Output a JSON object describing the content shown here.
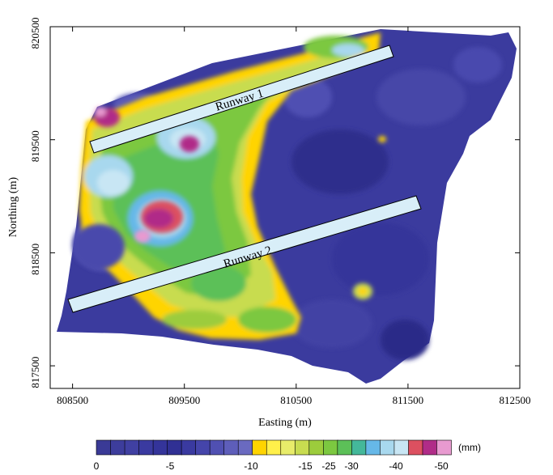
{
  "chart_data": {
    "type": "heatmap",
    "title": "",
    "xlabel": "Easting (m)",
    "ylabel": "Northing (m)",
    "xlim": [
      808300,
      812500
    ],
    "ylim": [
      817300,
      820500
    ],
    "x_ticks": [
      808500,
      809500,
      810500,
      811500,
      812500
    ],
    "y_ticks": [
      817500,
      818500,
      819500,
      820500
    ],
    "x_tick_labels": [
      "808500",
      "809500",
      "810500",
      "811500",
      "812500"
    ],
    "y_tick_labels": [
      "817500",
      "818500",
      "819500",
      "820500"
    ],
    "grid": false,
    "annotations": [
      "Runway 1",
      "Runway 2"
    ],
    "colorbar": {
      "unit": "(mm)",
      "tick_labels": [
        "0",
        "-5",
        "-10",
        "-15",
        "-25",
        "-30",
        "-40",
        "-50"
      ],
      "colors": [
        "#3a3a96",
        "#3d3d9c",
        "#4040a2",
        "#3a3aa0",
        "#34349a",
        "#303094",
        "#3a3aa0",
        "#4545aa",
        "#5050b2",
        "#5e5eba",
        "#6a6ac0",
        "#ffd400",
        "#fff04a",
        "#e8ec6a",
        "#c8dc50",
        "#9ccc3c",
        "#7cc840",
        "#5cc058",
        "#44b89a",
        "#66b8e8",
        "#a8d8ee",
        "#c8e6f4",
        "#dc5060",
        "#b02c88",
        "#e89ad0"
      ]
    }
  }
}
